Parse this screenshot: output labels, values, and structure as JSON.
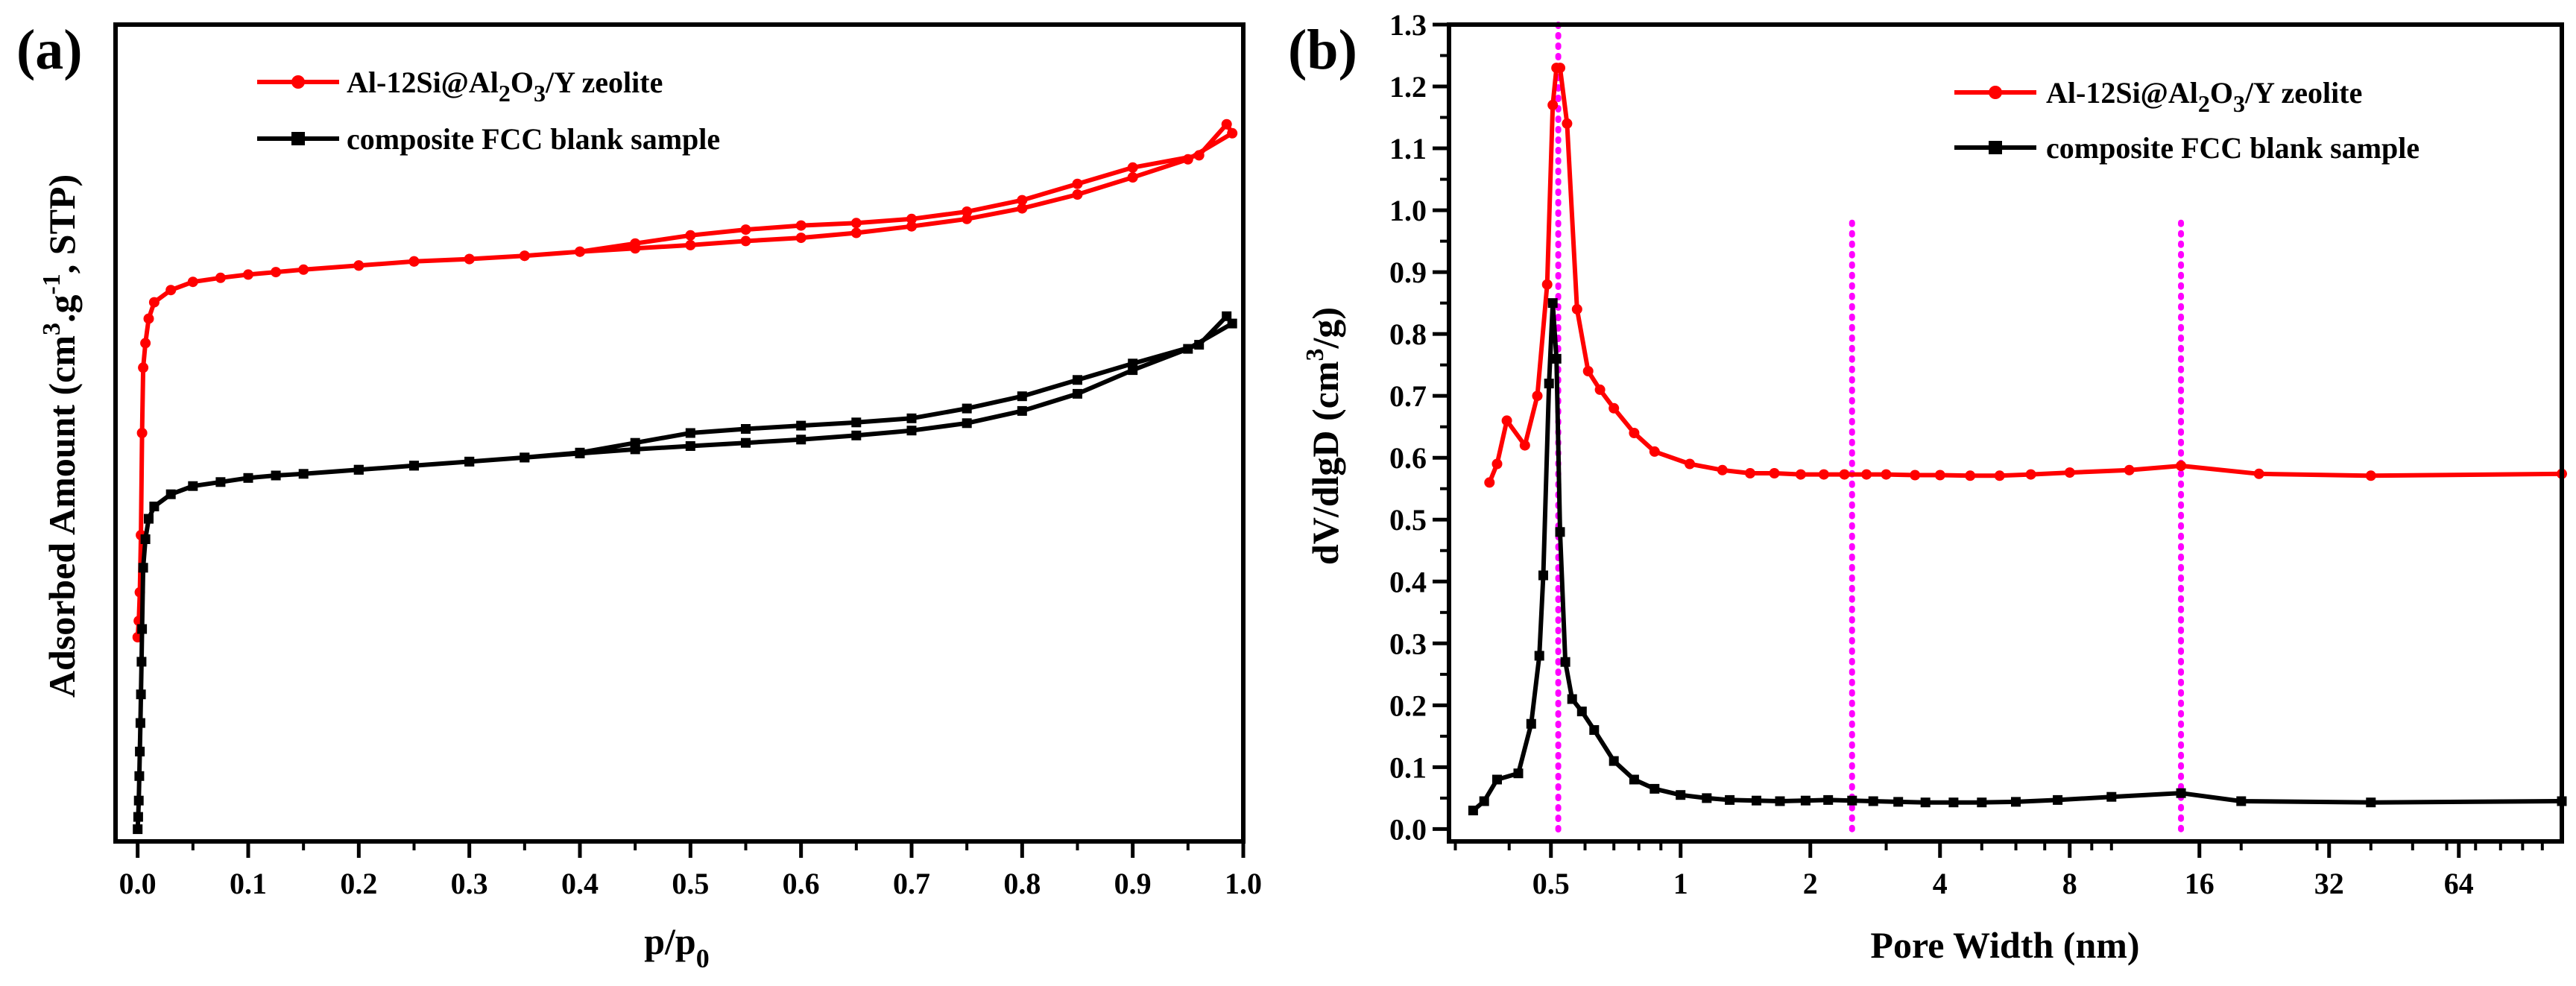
{
  "chart_data": [
    {
      "panel_label": "(a)",
      "type": "line",
      "xlabel": "p/p",
      "xlabel_sub": "0",
      "ylabel": "Adsorbed Amount (cm3.g-1, STP)",
      "ylabel_parts": [
        "Adsorbed Amount (cm",
        "3",
        ".g",
        "-1",
        ", STP)"
      ],
      "xlim": [
        -0.02,
        1.0
      ],
      "ylim": [
        0,
        100
      ],
      "x_ticks": [
        "0.0",
        "0.1",
        "0.2",
        "0.3",
        "0.4",
        "0.5",
        "0.6",
        "0.7",
        "0.8",
        "0.9",
        "1.0"
      ],
      "y_ticks_shown": false,
      "legend_position": "top-left",
      "series": [
        {
          "name": "Al-12Si@Al2O3/Y zeolite",
          "legend_parts": [
            "Al-12Si@Al",
            "2",
            "O",
            "3",
            "/Y zeolite"
          ],
          "color": "#ff0000",
          "marker": "circle",
          "x": [
            0.0,
            0.001,
            0.002,
            0.003,
            0.004,
            0.005,
            0.007,
            0.01,
            0.015,
            0.03,
            0.05,
            0.075,
            0.1,
            0.125,
            0.15,
            0.2,
            0.25,
            0.3,
            0.35,
            0.4,
            0.45,
            0.5,
            0.55,
            0.6,
            0.65,
            0.7,
            0.75,
            0.8,
            0.85,
            0.9,
            0.95,
            0.99,
            0.985,
            0.96,
            0.9,
            0.85,
            0.8,
            0.75,
            0.7,
            0.65,
            0.6,
            0.55,
            0.5,
            0.45,
            0.4,
            0.35,
            0.3,
            0.25,
            0.2
          ],
          "y": [
            25.0,
            27.0,
            30.5,
            37.5,
            50.0,
            58.0,
            61.0,
            64.0,
            66.0,
            67.5,
            68.5,
            69.0,
            69.4,
            69.7,
            70.0,
            70.5,
            71.0,
            71.3,
            71.7,
            72.2,
            72.6,
            73.0,
            73.5,
            73.9,
            74.5,
            75.3,
            76.2,
            77.5,
            79.2,
            81.3,
            83.5,
            86.7,
            87.8,
            84.0,
            82.5,
            80.5,
            78.5,
            77.1,
            76.2,
            75.7,
            75.4,
            74.9,
            74.2,
            73.2,
            72.2,
            71.7,
            71.3,
            71.0,
            70.5
          ]
        },
        {
          "name": "composite FCC blank sample",
          "color": "#000000",
          "marker": "square",
          "x": [
            0.0,
            0.0005,
            0.001,
            0.0015,
            0.002,
            0.0025,
            0.003,
            0.0035,
            0.004,
            0.005,
            0.007,
            0.01,
            0.015,
            0.03,
            0.05,
            0.075,
            0.1,
            0.125,
            0.15,
            0.2,
            0.25,
            0.3,
            0.35,
            0.4,
            0.45,
            0.5,
            0.55,
            0.6,
            0.65,
            0.7,
            0.75,
            0.8,
            0.85,
            0.9,
            0.95,
            0.99,
            0.985,
            0.96,
            0.9,
            0.85,
            0.8,
            0.75,
            0.7,
            0.65,
            0.6,
            0.55,
            0.5,
            0.45,
            0.4,
            0.35,
            0.3,
            0.25,
            0.2
          ],
          "y": [
            1.5,
            3.0,
            5.0,
            8.0,
            11.0,
            14.5,
            18.0,
            22.0,
            26.0,
            33.5,
            37.0,
            39.5,
            41.0,
            42.5,
            43.5,
            44.0,
            44.5,
            44.8,
            45.0,
            45.5,
            46.0,
            46.5,
            47.0,
            47.5,
            48.0,
            48.4,
            48.8,
            49.2,
            49.7,
            50.3,
            51.2,
            52.7,
            54.8,
            57.7,
            60.3,
            63.4,
            64.3,
            60.8,
            58.5,
            56.5,
            54.5,
            53.0,
            51.8,
            51.3,
            50.9,
            50.5,
            50.0,
            48.8,
            47.6,
            47.0,
            46.5,
            46.0,
            45.5
          ]
        }
      ]
    },
    {
      "panel_label": "(b)",
      "type": "line",
      "xlabel": "Pore Width (nm)",
      "ylabel": "dV/dlgD (cm3/g)",
      "ylabel_parts": [
        "dV/dlgD (cm",
        "3",
        "/g)"
      ],
      "x_scale": "log2",
      "xlim": [
        0.29,
        111
      ],
      "ylim": [
        -0.02,
        1.3
      ],
      "x_ticks": [
        "0.5",
        "1",
        "2",
        "4",
        "8",
        "16",
        "32",
        "64"
      ],
      "x_tick_values": [
        0.5,
        1,
        2,
        4,
        8,
        16,
        32,
        64
      ],
      "y_ticks": [
        "0.0",
        "0.1",
        "0.2",
        "0.3",
        "0.4",
        "0.5",
        "0.6",
        "0.7",
        "0.8",
        "0.9",
        "1.0",
        "1.1",
        "1.2",
        "1.3"
      ],
      "y_tick_values": [
        0.0,
        0.1,
        0.2,
        0.3,
        0.4,
        0.5,
        0.6,
        0.7,
        0.8,
        0.9,
        1.0,
        1.1,
        1.2,
        1.3
      ],
      "reference_lines_x": [
        0.52,
        2.5,
        14.5
      ],
      "reference_line_color": "#ff00ff",
      "legend_position": "top-right",
      "series": [
        {
          "name": "Al-12Si@Al2O3/Y zeolite",
          "legend_parts": [
            "Al-12Si@Al",
            "2",
            "O",
            "3",
            "/Y zeolite"
          ],
          "color": "#ff0000",
          "marker": "circle",
          "x": [
            0.36,
            0.375,
            0.395,
            0.435,
            0.465,
            0.49,
            0.505,
            0.515,
            0.525,
            0.545,
            0.575,
            0.61,
            0.65,
            0.7,
            0.78,
            0.87,
            1.05,
            1.25,
            1.45,
            1.65,
            1.9,
            2.15,
            2.4,
            2.7,
            3.0,
            3.5,
            4.0,
            4.7,
            5.5,
            6.5,
            8.0,
            11.0,
            14.5,
            22.0,
            40.0,
            111.0
          ],
          "y": [
            0.56,
            0.59,
            0.66,
            0.62,
            0.7,
            0.88,
            1.17,
            1.23,
            1.23,
            1.14,
            0.84,
            0.74,
            0.71,
            0.68,
            0.64,
            0.61,
            0.59,
            0.58,
            0.575,
            0.575,
            0.573,
            0.573,
            0.573,
            0.573,
            0.573,
            0.572,
            0.572,
            0.571,
            0.571,
            0.573,
            0.576,
            0.58,
            0.587,
            0.574,
            0.571,
            0.574
          ]
        },
        {
          "name": "composite FCC blank sample",
          "color": "#000000",
          "marker": "square",
          "x": [
            0.33,
            0.35,
            0.375,
            0.42,
            0.45,
            0.47,
            0.48,
            0.495,
            0.505,
            0.515,
            0.525,
            0.54,
            0.56,
            0.59,
            0.63,
            0.7,
            0.78,
            0.87,
            1.0,
            1.15,
            1.3,
            1.5,
            1.7,
            1.95,
            2.2,
            2.5,
            2.8,
            3.2,
            3.7,
            4.3,
            5.0,
            6.0,
            7.5,
            10.0,
            14.5,
            20.0,
            40.0,
            111.0
          ],
          "y": [
            0.03,
            0.045,
            0.08,
            0.09,
            0.17,
            0.28,
            0.41,
            0.72,
            0.85,
            0.76,
            0.48,
            0.27,
            0.21,
            0.19,
            0.16,
            0.11,
            0.08,
            0.065,
            0.055,
            0.05,
            0.047,
            0.046,
            0.045,
            0.046,
            0.047,
            0.046,
            0.045,
            0.044,
            0.043,
            0.043,
            0.043,
            0.044,
            0.047,
            0.052,
            0.058,
            0.045,
            0.043,
            0.045
          ]
        }
      ]
    }
  ]
}
